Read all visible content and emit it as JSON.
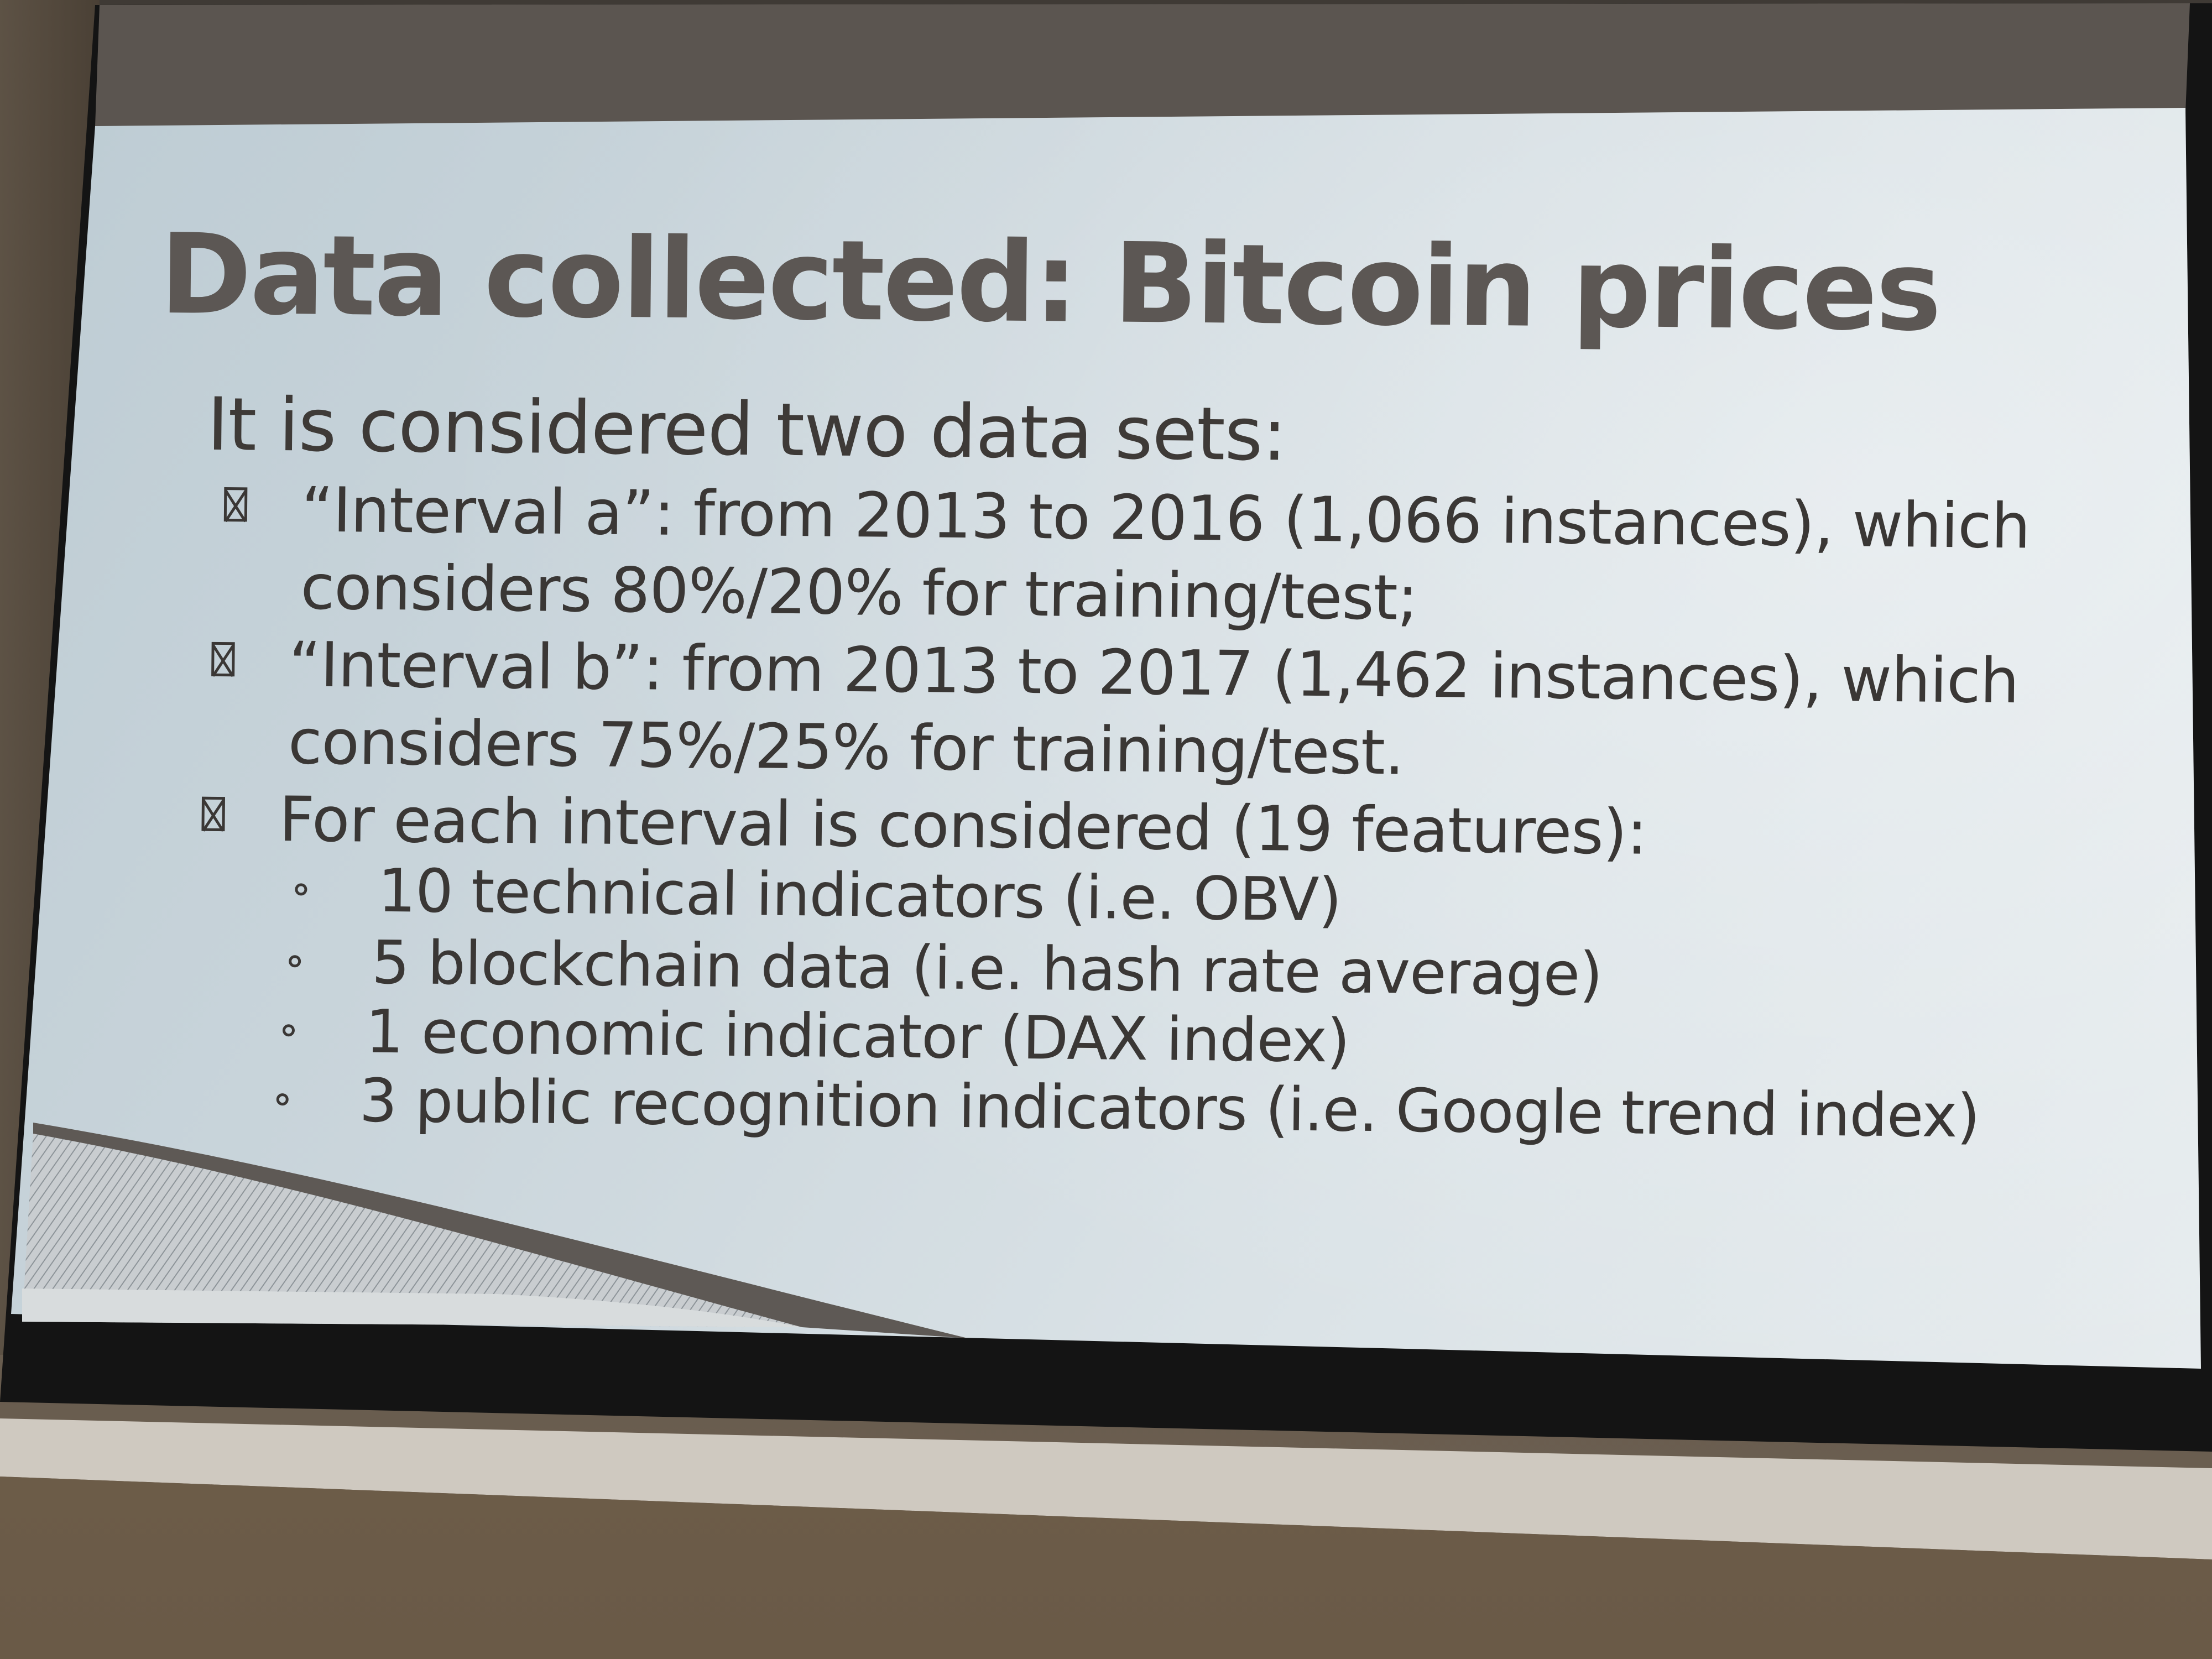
{
  "slide": {
    "title": "Data collected: Bitcoin prices",
    "intro": "It is considered two data sets:",
    "bullets": [
      {
        "line1": "“Interval a”: from 2013 to 2016  (1,066 instances), which",
        "line2": "considers 80%/20% for training/test;"
      },
      {
        "line1": "“Interval b”: from 2013 to 2017 (1,462 instances), which",
        "line2": "considers 75%/25% for training/test."
      },
      {
        "line1": "For each interval is considered (19 features):"
      }
    ],
    "sub_bullets": [
      "10 technical indicators (i.e. OBV)",
      "5 blockchain data (i.e. hash rate average)",
      "1 economic indicator (DAX index)",
      "3 public recognition indicators (i.e. Google trend index)"
    ]
  },
  "colors": {
    "slide_background": "#d3dde2",
    "title_text": "#5c5754",
    "body_text": "#3a3735",
    "screen_border": "#141414"
  }
}
